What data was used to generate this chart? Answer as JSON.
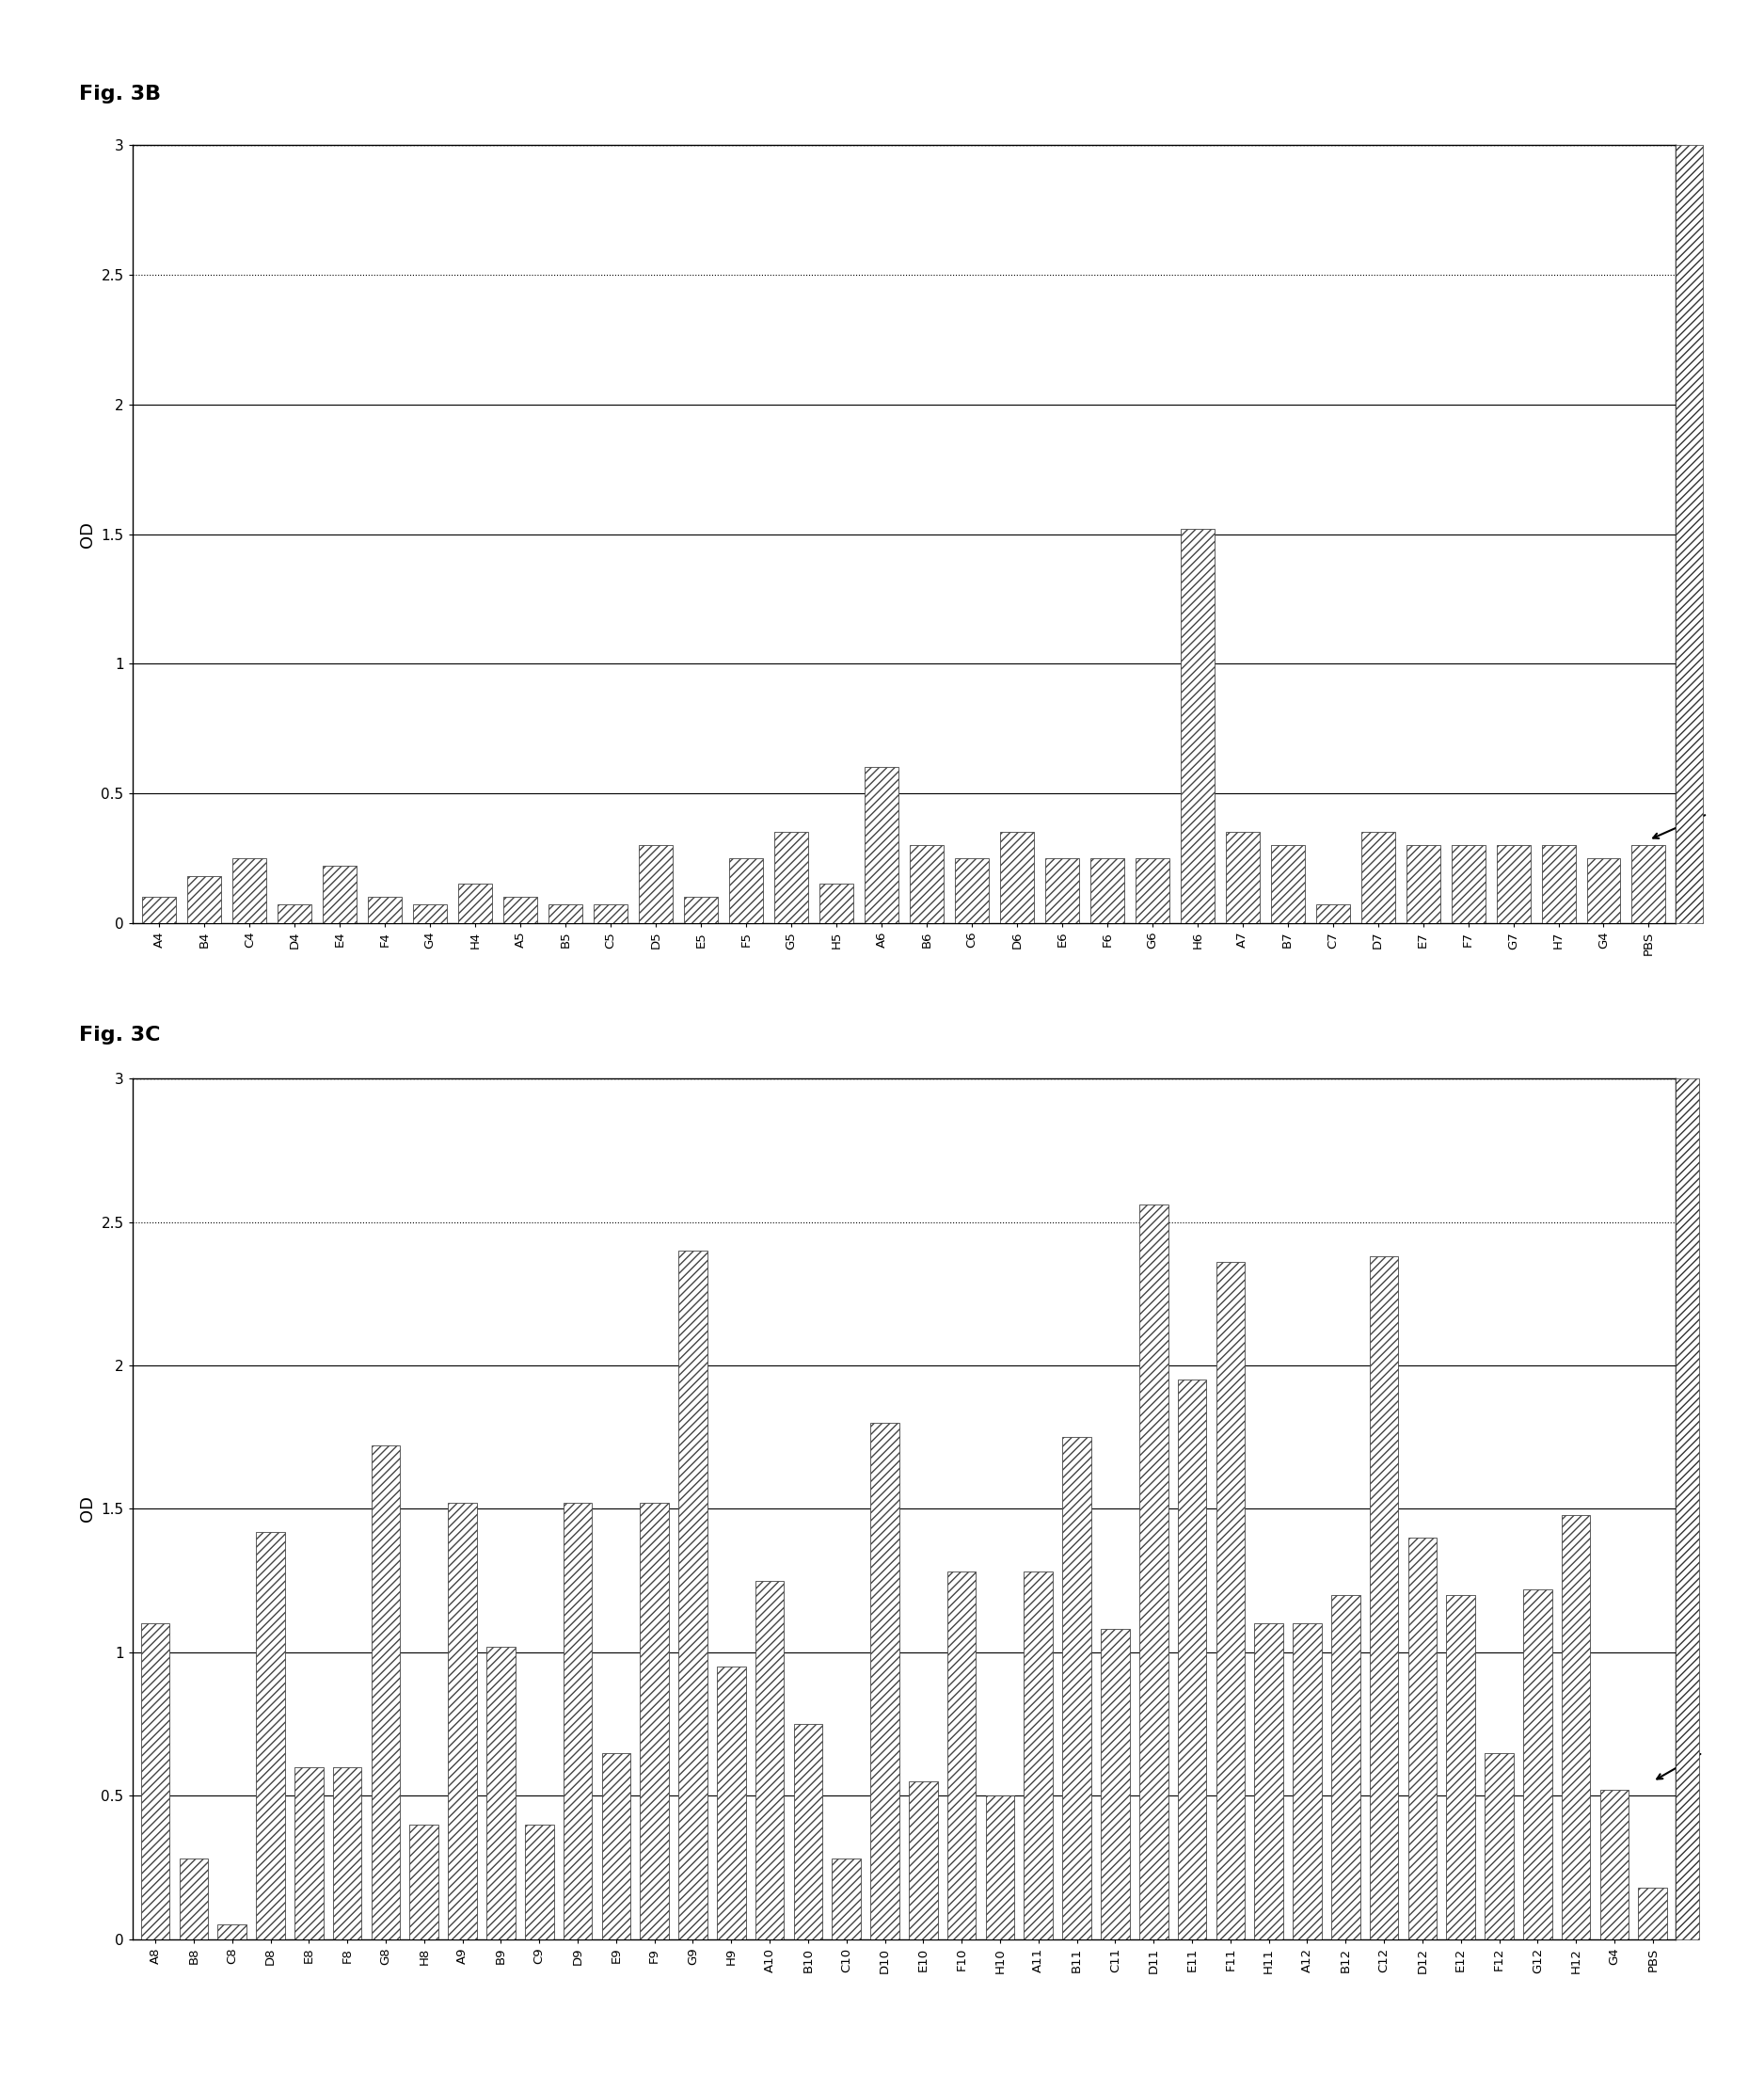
{
  "fig3b_title": "Fig. 3B",
  "fig3c_title": "Fig. 3C",
  "ylabel": "OD",
  "ylim": [
    0,
    3.0
  ],
  "yticks": [
    0,
    0.5,
    1.0,
    1.5,
    2.0,
    2.5,
    3.0
  ],
  "ytick_labels": [
    "0",
    "0.5",
    "1",
    "1.5",
    "2",
    "2.5",
    "3"
  ],
  "fig3b_categories": [
    "A4",
    "B4",
    "C4",
    "D4",
    "E4",
    "F4",
    "G4",
    "H4",
    "A5",
    "B5",
    "C5",
    "D5",
    "E5",
    "F5",
    "G5",
    "H5",
    "A6",
    "B6",
    "C6",
    "D6",
    "E6",
    "F6",
    "G6",
    "H6",
    "A7",
    "B7",
    "C7",
    "D7",
    "E7",
    "F7",
    "G7",
    "H7",
    "G4",
    "PBS"
  ],
  "fig3b_values": [
    0.1,
    0.18,
    0.25,
    0.07,
    0.22,
    0.1,
    0.07,
    0.15,
    0.1,
    0.07,
    0.07,
    0.3,
    0.1,
    0.25,
    0.35,
    0.15,
    0.6,
    0.3,
    0.25,
    0.35,
    0.25,
    0.25,
    0.25,
    1.52,
    0.35,
    0.3,
    0.07,
    0.35,
    0.3,
    0.3,
    0.3,
    0.3,
    0.25,
    0.3
  ],
  "fig3c_categories": [
    "A8",
    "B8",
    "C8",
    "D8",
    "E8",
    "F8",
    "G8",
    "H8",
    "A9",
    "B9",
    "C9",
    "D9",
    "E9",
    "F9",
    "G9",
    "H9",
    "A10",
    "B10",
    "C10",
    "D10",
    "E10",
    "F10",
    "H10",
    "A11",
    "B11",
    "C11",
    "D11",
    "E11",
    "F11",
    "H11",
    "A12",
    "B12",
    "C12",
    "D12",
    "E12",
    "F12",
    "G12",
    "H12",
    "G4",
    "PBS"
  ],
  "fig3c_values": [
    1.1,
    0.28,
    0.05,
    1.42,
    0.6,
    0.6,
    1.72,
    0.4,
    1.52,
    1.02,
    0.4,
    1.52,
    0.65,
    1.52,
    2.4,
    0.95,
    1.25,
    0.75,
    0.28,
    1.8,
    0.55,
    1.28,
    0.5,
    1.28,
    1.75,
    1.08,
    2.56,
    1.95,
    2.36,
    1.1,
    1.1,
    1.2,
    2.38,
    1.4,
    1.2,
    0.65,
    1.22,
    1.48,
    0.52,
    0.18
  ],
  "background_color": "#ffffff"
}
